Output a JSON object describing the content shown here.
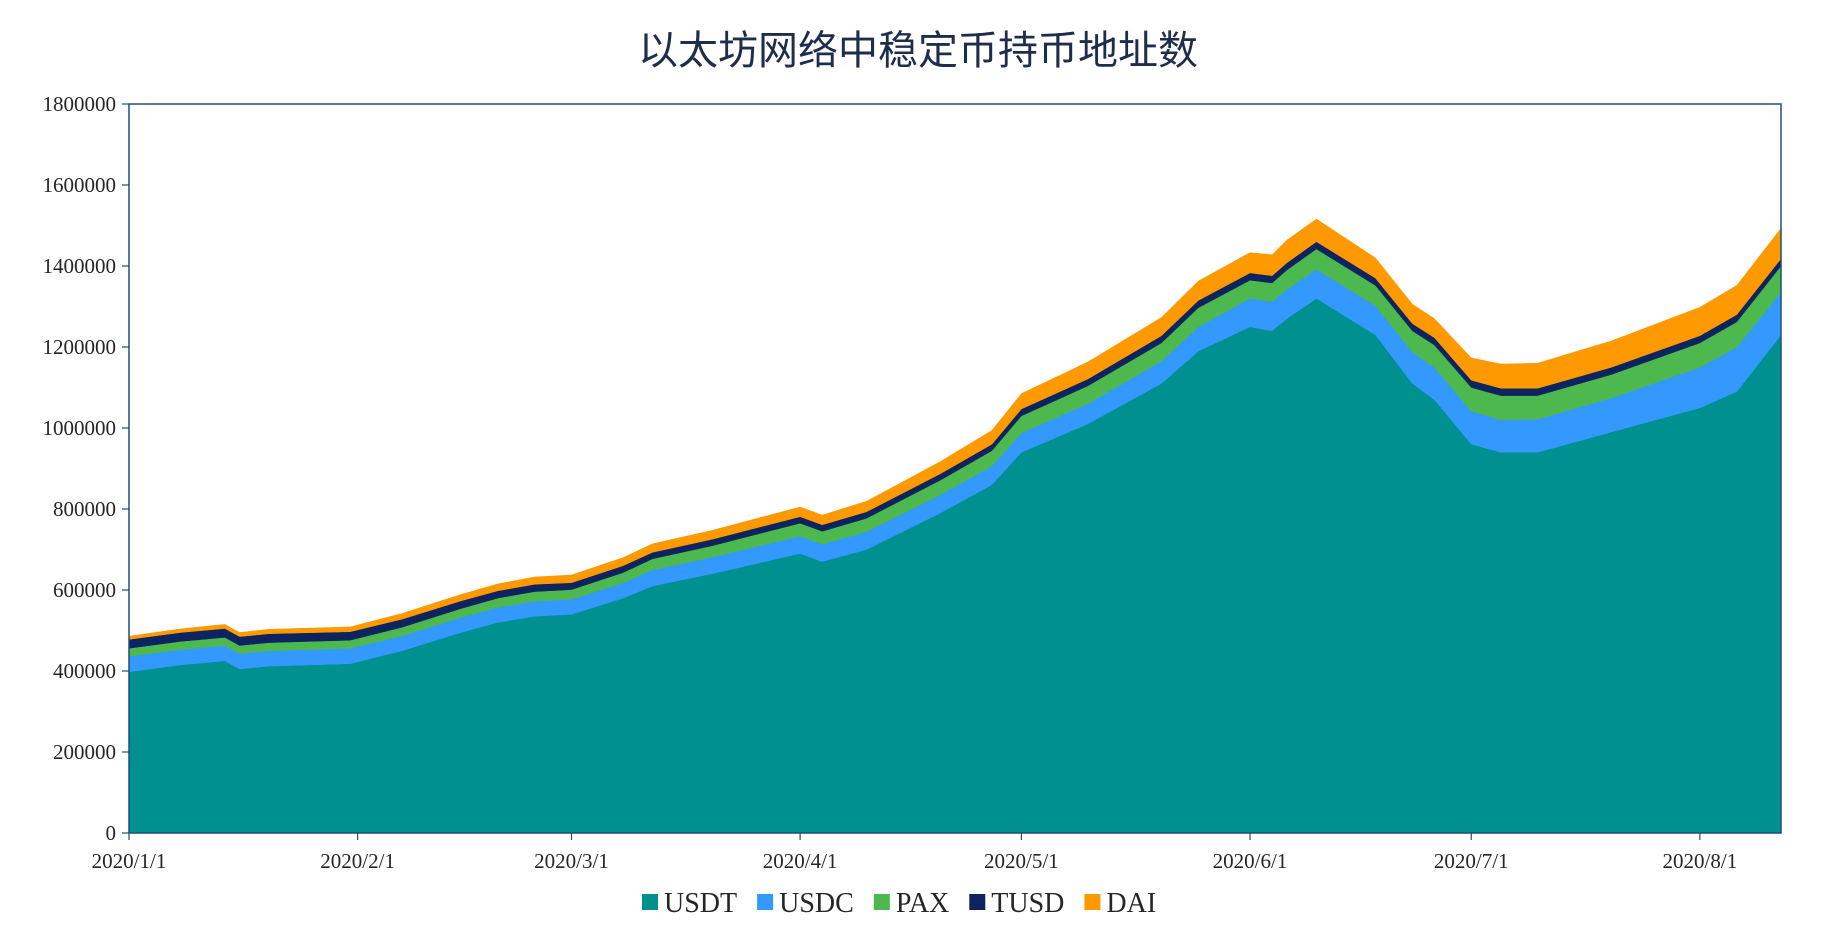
{
  "chart_data": {
    "type": "area",
    "stacked": true,
    "title": "以太坊网络中稳定币持币地址数",
    "xlabel": "",
    "ylabel": "",
    "ylim": [
      0,
      1800000
    ],
    "y_ticks": [
      0,
      200000,
      400000,
      600000,
      800000,
      1000000,
      1200000,
      1400000,
      1600000,
      1800000
    ],
    "y_tick_labels": [
      "0",
      "200000",
      "400000",
      "600000",
      "800000",
      "1000000",
      "1200000",
      "1400000",
      "1600000",
      "1800000"
    ],
    "x_ticks": [
      "2020-01-01",
      "2020-02-01",
      "2020-03-01",
      "2020-04-01",
      "2020-05-01",
      "2020-06-01",
      "2020-07-01",
      "2020-08-01"
    ],
    "x_tick_labels": [
      "2020/1/1",
      "2020/2/1",
      "2020/3/1",
      "2020/4/1",
      "2020/5/1",
      "2020/6/1",
      "2020/7/1",
      "2020/8/1"
    ],
    "xlim": [
      "2020-01-01",
      "2020-08-12"
    ],
    "grid": false,
    "legend": "bottom",
    "x": [
      "2020-01-01",
      "2020-01-08",
      "2020-01-14",
      "2020-01-16",
      "2020-01-20",
      "2020-01-31",
      "2020-02-07",
      "2020-02-15",
      "2020-02-20",
      "2020-02-25",
      "2020-03-01",
      "2020-03-08",
      "2020-03-12",
      "2020-03-20",
      "2020-03-26",
      "2020-04-01",
      "2020-04-04",
      "2020-04-10",
      "2020-04-20",
      "2020-04-27",
      "2020-05-01",
      "2020-05-10",
      "2020-05-20",
      "2020-05-25",
      "2020-06-01",
      "2020-06-04",
      "2020-06-06",
      "2020-06-10",
      "2020-06-18",
      "2020-06-23",
      "2020-06-26",
      "2020-07-01",
      "2020-07-05",
      "2020-07-10",
      "2020-07-20",
      "2020-08-01",
      "2020-08-06",
      "2020-08-12"
    ],
    "series": [
      {
        "name": "USDT",
        "color": "#009090",
        "values": [
          398000,
          415000,
          425000,
          405000,
          412000,
          418000,
          450000,
          495000,
          520000,
          535000,
          540000,
          580000,
          610000,
          640000,
          665000,
          690000,
          670000,
          700000,
          790000,
          860000,
          940000,
          1010000,
          1110000,
          1190000,
          1250000,
          1240000,
          1270000,
          1320000,
          1230000,
          1110000,
          1070000,
          960000,
          940000,
          940000,
          990000,
          1050000,
          1090000,
          1230000
        ]
      },
      {
        "name": "USDC",
        "color": "#3399ff",
        "values": [
          38000,
          38000,
          38000,
          38000,
          38000,
          38000,
          37000,
          37000,
          37000,
          37000,
          37000,
          38000,
          40000,
          41000,
          42000,
          43000,
          43000,
          44000,
          45000,
          46000,
          48000,
          50000,
          55000,
          60000,
          70000,
          72000,
          72000,
          72000,
          72000,
          78000,
          80000,
          82000,
          80000,
          82000,
          84000,
          100000,
          110000,
          105000
        ]
      },
      {
        "name": "PAX",
        "color": "#4db84d",
        "values": [
          20000,
          20000,
          20000,
          20000,
          20000,
          20000,
          21000,
          22000,
          23000,
          24000,
          24000,
          25000,
          27000,
          28000,
          30000,
          32000,
          32000,
          33000,
          36000,
          38000,
          42000,
          44000,
          45000,
          47000,
          45000,
          46000,
          48000,
          50000,
          50000,
          52000,
          55000,
          58000,
          60000,
          58000,
          58000,
          60000,
          62000,
          65000
        ]
      },
      {
        "name": "TUSD",
        "color": "#0d2460",
        "values": [
          22000,
          22000,
          22000,
          22000,
          22000,
          21000,
          20000,
          19000,
          18000,
          18000,
          17000,
          17000,
          16000,
          16000,
          16000,
          16000,
          16000,
          16000,
          16000,
          16000,
          17000,
          17000,
          18000,
          18000,
          18000,
          18000,
          18000,
          18000,
          18000,
          18000,
          18000,
          18000,
          18000,
          18000,
          18000,
          18000,
          18000,
          18000
        ]
      },
      {
        "name": "DAI",
        "color": "#ff9900",
        "values": [
          8000,
          9000,
          10000,
          10000,
          11000,
          12000,
          14000,
          16000,
          17000,
          18000,
          19000,
          20000,
          21000,
          22000,
          23000,
          24000,
          24000,
          26000,
          30000,
          34000,
          38000,
          42000,
          45000,
          48000,
          50000,
          52000,
          56000,
          56000,
          50000,
          48000,
          47000,
          55000,
          60000,
          62000,
          65000,
          70000,
          72000,
          75000
        ]
      }
    ]
  }
}
